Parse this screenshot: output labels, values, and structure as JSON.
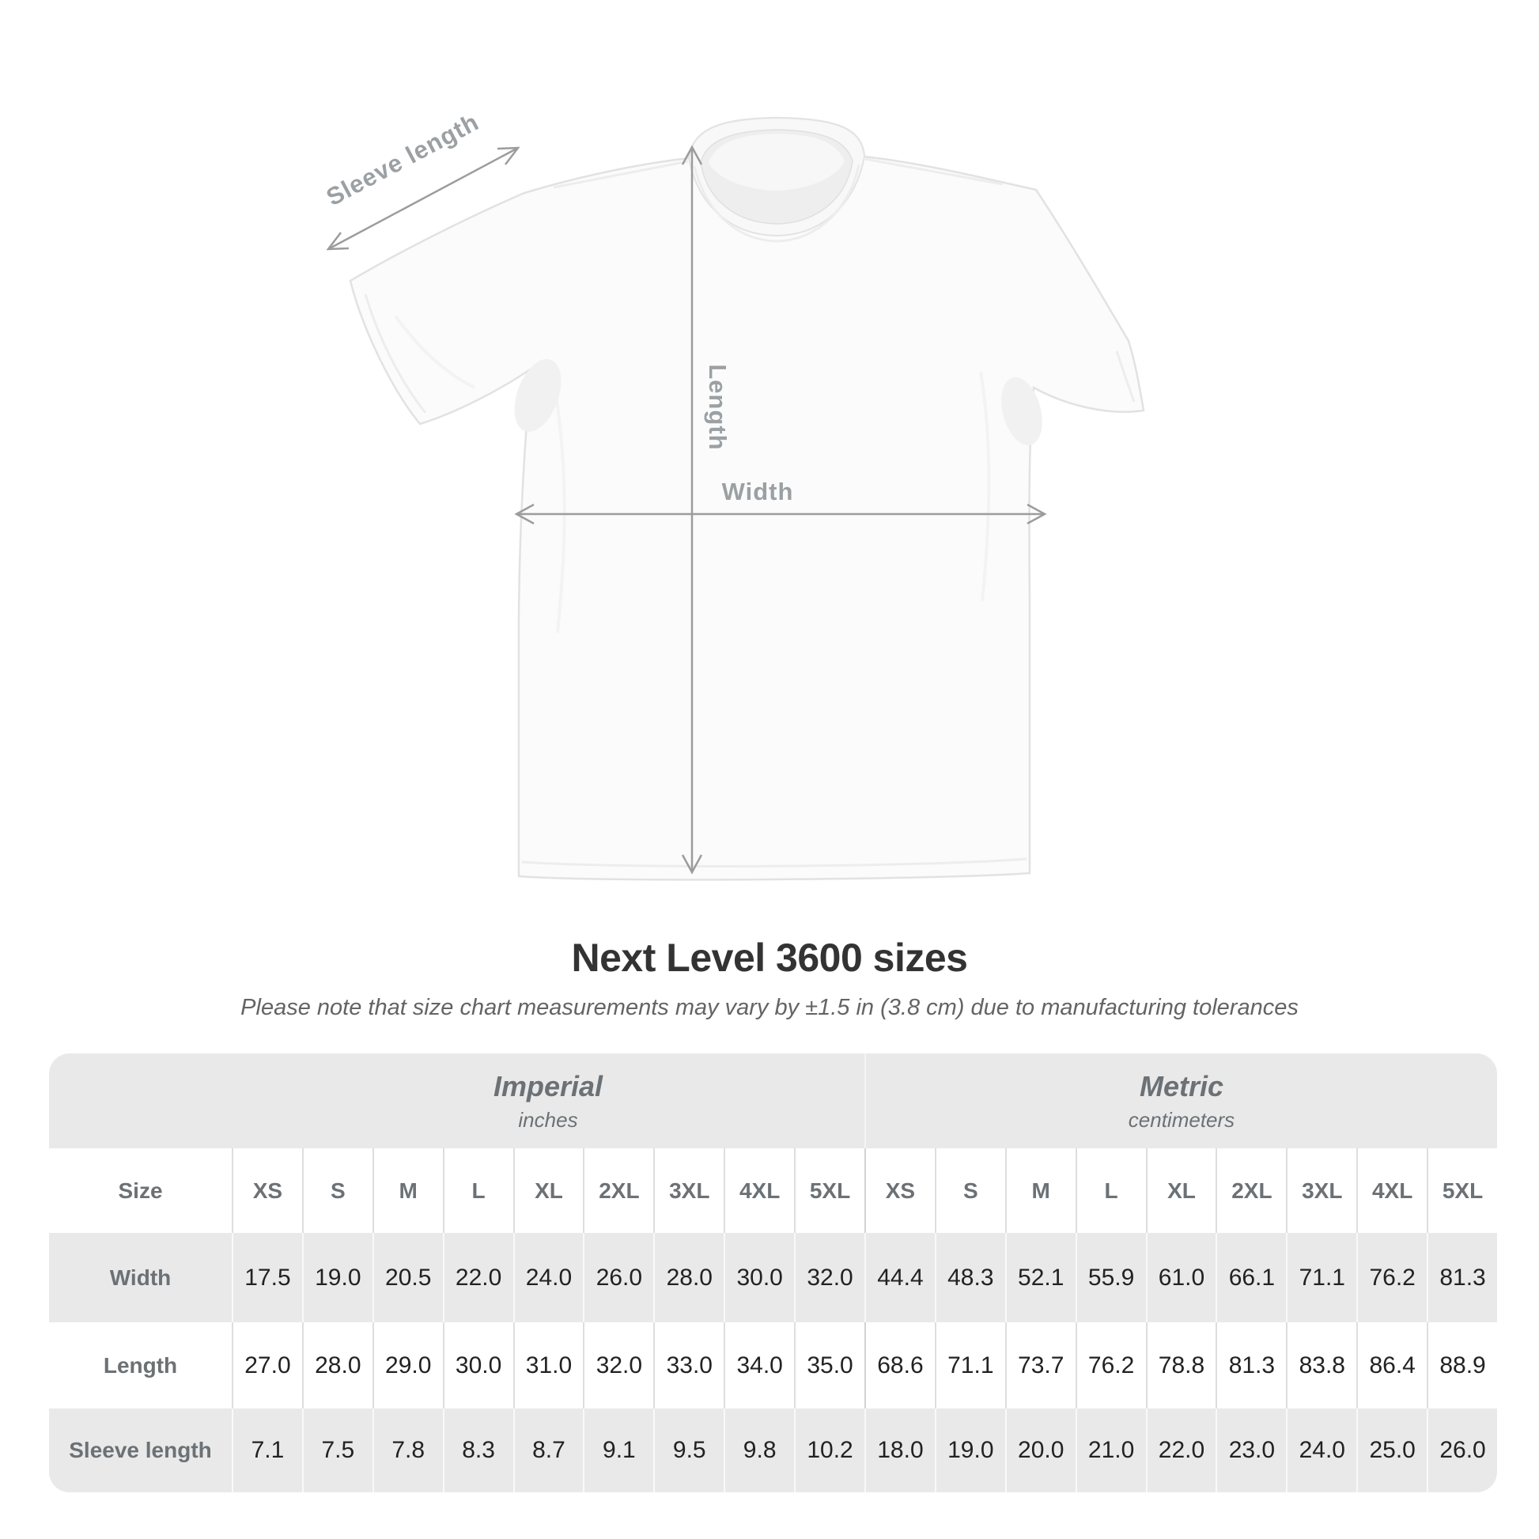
{
  "title": "Next Level 3600 sizes",
  "subtitle": "Please note that size chart measurements may vary by ±1.5 in (3.8 cm) due to manufacturing tolerances",
  "diagram": {
    "sleeve_length_label": "Sleeve length",
    "length_label": "Length",
    "width_label": "Width"
  },
  "size_chart": {
    "size_label": "Size",
    "sizes": [
      "XS",
      "S",
      "M",
      "L",
      "XL",
      "2XL",
      "3XL",
      "4XL",
      "5XL"
    ],
    "unit_groups": [
      {
        "label": "Imperial",
        "sublabel": "inches"
      },
      {
        "label": "Metric",
        "sublabel": "centimeters"
      }
    ],
    "rows": [
      {
        "label": "Width",
        "imperial": [
          "17.5",
          "19.0",
          "20.5",
          "22.0",
          "24.0",
          "26.0",
          "28.0",
          "30.0",
          "32.0"
        ],
        "metric": [
          "44.4",
          "48.3",
          "52.1",
          "55.9",
          "61.0",
          "66.1",
          "71.1",
          "76.2",
          "81.3"
        ]
      },
      {
        "label": "Length",
        "imperial": [
          "27.0",
          "28.0",
          "29.0",
          "30.0",
          "31.0",
          "32.0",
          "33.0",
          "34.0",
          "35.0"
        ],
        "metric": [
          "68.6",
          "71.1",
          "73.7",
          "76.2",
          "78.8",
          "81.3",
          "83.8",
          "86.4",
          "88.9"
        ]
      },
      {
        "label": "Sleeve length",
        "imperial": [
          "7.1",
          "7.5",
          "7.8",
          "8.3",
          "8.7",
          "9.1",
          "9.5",
          "9.8",
          "10.2"
        ],
        "metric": [
          "18.0",
          "19.0",
          "20.0",
          "21.0",
          "22.0",
          "23.0",
          "24.0",
          "25.0",
          "26.0"
        ]
      }
    ]
  },
  "colors": {
    "table_band_bg": "#e9e9e9",
    "header_text": "#6b7175",
    "value_text": "#222222",
    "title_text": "#333333",
    "measure_line": "#9c9c9c",
    "measure_label": "#9aa0a3"
  }
}
